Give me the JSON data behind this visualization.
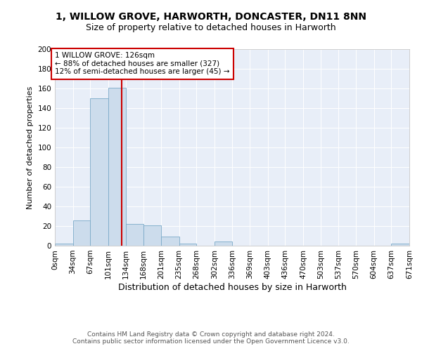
{
  "title": "1, WILLOW GROVE, HARWORTH, DONCASTER, DN11 8NN",
  "subtitle": "Size of property relative to detached houses in Harworth",
  "xlabel": "Distribution of detached houses by size in Harworth",
  "ylabel": "Number of detached properties",
  "bin_edges": [
    0,
    34,
    67,
    101,
    134,
    168,
    201,
    235,
    268,
    302,
    336,
    369,
    403,
    436,
    470,
    503,
    537,
    570,
    604,
    637,
    671
  ],
  "bar_heights": [
    2,
    26,
    150,
    161,
    22,
    21,
    9,
    2,
    0,
    4,
    0,
    0,
    0,
    0,
    0,
    0,
    0,
    0,
    0,
    2
  ],
  "bar_color": "#ccdcec",
  "bar_edge_color": "#7aaac8",
  "vline_x": 126,
  "vline_color": "#cc0000",
  "ylim": [
    0,
    200
  ],
  "yticks": [
    0,
    20,
    40,
    60,
    80,
    100,
    120,
    140,
    160,
    180,
    200
  ],
  "annotation_text": "1 WILLOW GROVE: 126sqm\n← 88% of detached houses are smaller (327)\n12% of semi-detached houses are larger (45) →",
  "annotation_box_facecolor": "#ffffff",
  "annotation_box_edgecolor": "#cc0000",
  "footnote1": "Contains HM Land Registry data © Crown copyright and database right 2024.",
  "footnote2": "Contains public sector information licensed under the Open Government Licence v3.0.",
  "bg_color": "#e8eef8",
  "title_fontsize": 10,
  "subtitle_fontsize": 9,
  "xlabel_fontsize": 9,
  "ylabel_fontsize": 8,
  "tick_fontsize": 7.5,
  "footnote_fontsize": 6.5,
  "tick_labels": [
    "0sqm",
    "34sqm",
    "67sqm",
    "101sqm",
    "134sqm",
    "168sqm",
    "201sqm",
    "235sqm",
    "268sqm",
    "302sqm",
    "336sqm",
    "369sqm",
    "403sqm",
    "436sqm",
    "470sqm",
    "503sqm",
    "537sqm",
    "570sqm",
    "604sqm",
    "637sqm",
    "671sqm"
  ]
}
